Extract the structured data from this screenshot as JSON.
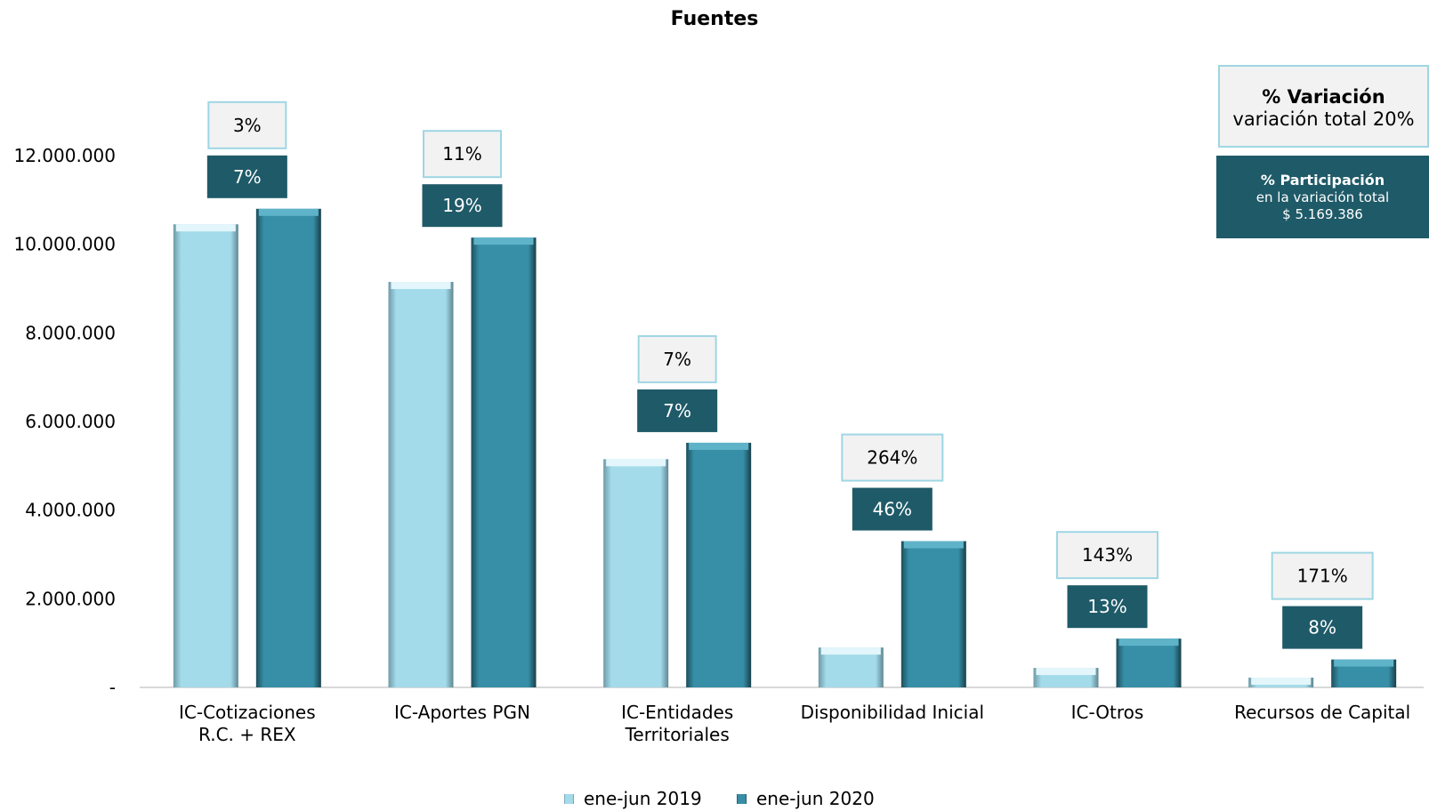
{
  "chart_data": {
    "type": "bar",
    "title": "Fuentes",
    "xlabel": "",
    "ylabel": "",
    "ylim": [
      0,
      12000000
    ],
    "y_ticks": [
      {
        "value": 0,
        "label": "-"
      },
      {
        "value": 2000000,
        "label": "2.000.000"
      },
      {
        "value": 4000000,
        "label": "4.000.000"
      },
      {
        "value": 6000000,
        "label": "6.000.000"
      },
      {
        "value": 8000000,
        "label": "8.000.000"
      },
      {
        "value": 10000000,
        "label": "10.000.000"
      },
      {
        "value": 12000000,
        "label": "12.000.000"
      }
    ],
    "categories": [
      [
        "IC-Cotizaciones",
        "R.C. + REX"
      ],
      [
        "IC-Aportes PGN"
      ],
      [
        "IC-Entidades",
        "Territoriales"
      ],
      [
        "Disponibilidad Inicial"
      ],
      [
        "IC-Otros"
      ],
      [
        "Recursos de Capital"
      ]
    ],
    "series": [
      {
        "name": "ene-jun 2019",
        "color": "#a3dbea",
        "values": [
          10450000,
          9150000,
          5150000,
          900000,
          440000,
          220000
        ]
      },
      {
        "name": "ene-jun 2020",
        "color": "#378ea7",
        "values": [
          10800000,
          10150000,
          5520000,
          3300000,
          1100000,
          630000
        ]
      }
    ],
    "variacion_labels": [
      "3%",
      "11%",
      "7%",
      "264%",
      "143%",
      "171%"
    ],
    "participacion_labels": [
      "7%",
      "19%",
      "7%",
      "46%",
      "13%",
      "8%"
    ],
    "grid": false,
    "legend_position": "bottom"
  },
  "notes": {
    "variacion_title": "% Variación",
    "variacion_subtitle": "variación total 20%",
    "participacion_title": "% Participación",
    "participacion_line1": "en la variación total",
    "participacion_line2": "$ 5.169.386"
  },
  "colors": {
    "series_2019": "#a3dbea",
    "series_2020": "#378ea7",
    "label_dark": "#1f5a68",
    "label_light": "#f2f2f2"
  }
}
